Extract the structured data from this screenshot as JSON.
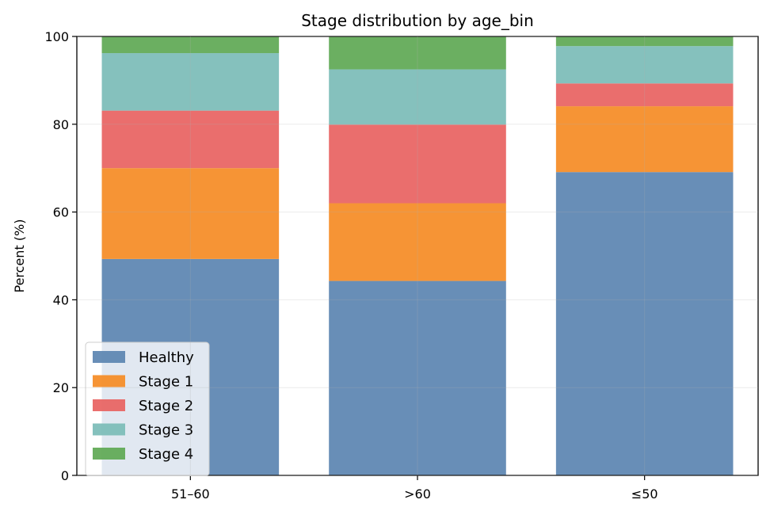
{
  "chart_data": {
    "type": "bar",
    "stacked": true,
    "title": "Stage distribution by age_bin",
    "xlabel": "",
    "ylabel": "Percent (%)",
    "ylim": [
      0,
      100
    ],
    "yticks": [
      0,
      20,
      40,
      60,
      80,
      100
    ],
    "categories": [
      "51–60",
      ">60",
      "≤50"
    ],
    "grid": true,
    "legend_position": "lower-left",
    "series": [
      {
        "name": "Healthy",
        "color": "#5b84b1",
        "values": [
          49.3,
          44.3,
          69.1
        ]
      },
      {
        "name": "Stage 1",
        "color": "#f58b24",
        "values": [
          20.7,
          17.7,
          15.0
        ]
      },
      {
        "name": "Stage 2",
        "color": "#e86261",
        "values": [
          13.1,
          17.9,
          5.2
        ]
      },
      {
        "name": "Stage 3",
        "color": "#7bbcb7",
        "values": [
          13.1,
          12.6,
          8.5
        ]
      },
      {
        "name": "Stage 4",
        "color": "#5ea854",
        "values": [
          3.8,
          7.5,
          2.2
        ]
      }
    ]
  }
}
